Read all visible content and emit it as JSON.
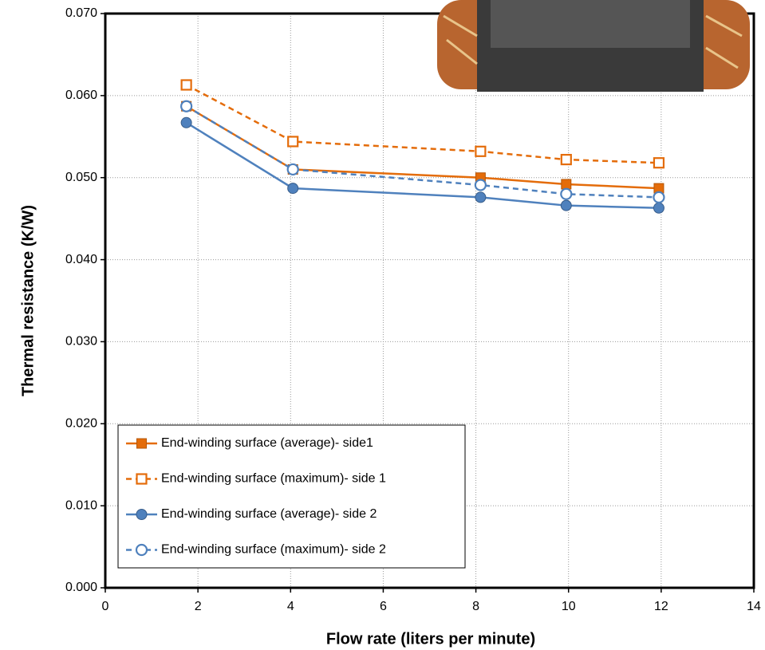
{
  "chart_data": {
    "type": "line",
    "xlabel": "Flow rate (liters per minute)",
    "ylabel": "Thermal resistance (K/W)",
    "x": [
      1.75,
      4.05,
      8.1,
      9.95,
      11.95
    ],
    "series": [
      {
        "name": "End-winding surface (average)- side1",
        "color": "#e46c0a",
        "marker": "square",
        "filled": true,
        "dashed": false,
        "values": [
          0.0587,
          0.051,
          0.05,
          0.0492,
          0.0487
        ]
      },
      {
        "name": "End-winding surface (maximum)- side 1",
        "color": "#e46c0a",
        "marker": "square",
        "filled": false,
        "dashed": true,
        "values": [
          0.0613,
          0.0544,
          0.0532,
          0.0522,
          0.0518
        ]
      },
      {
        "name": "End-winding surface (average)- side 2",
        "color": "#4f81bd",
        "marker": "circle",
        "filled": true,
        "dashed": false,
        "values": [
          0.0567,
          0.0487,
          0.0476,
          0.0466,
          0.0463
        ]
      },
      {
        "name": "End-winding surface (maximum)- side 2",
        "color": "#4f81bd",
        "marker": "circle",
        "filled": false,
        "dashed": true,
        "values": [
          0.0587,
          0.051,
          0.0491,
          0.048,
          0.0476
        ]
      }
    ],
    "xlim": [
      0,
      14
    ],
    "xticks": [
      0,
      2,
      4,
      6,
      8,
      10,
      12,
      14
    ],
    "ylim": [
      0,
      0.07
    ],
    "yticks": [
      {
        "value": 0,
        "label": "0.000"
      },
      {
        "value": 0.01,
        "label": "0.010"
      },
      {
        "value": 0.02,
        "label": "0.020"
      },
      {
        "value": 0.03,
        "label": "0.030"
      },
      {
        "value": 0.04,
        "label": "0.040"
      },
      {
        "value": 0.05,
        "label": "0.050"
      },
      {
        "value": 0.06,
        "label": "0.060"
      },
      {
        "value": 0.07,
        "label": "0.070"
      }
    ],
    "grid": true,
    "legend": "lower left"
  }
}
